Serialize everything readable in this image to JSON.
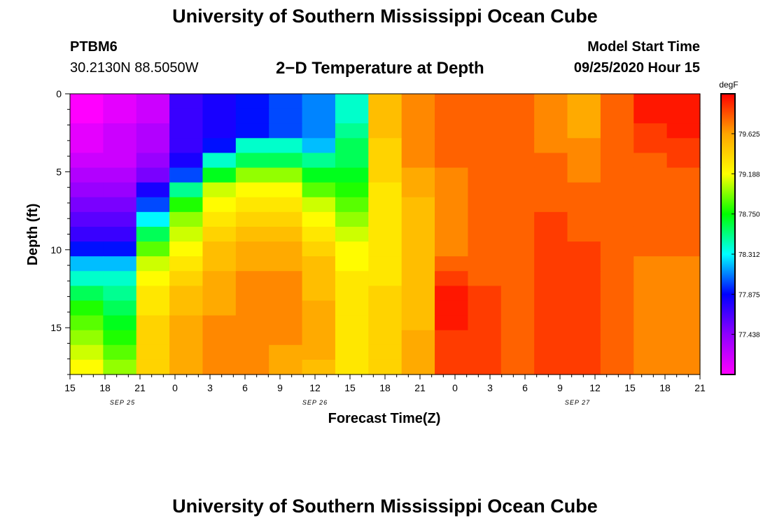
{
  "header": {
    "title": "University of Southern Mississippi Ocean Cube",
    "station_id": "PTBM6",
    "station_location": "30.2130N 88.5050W",
    "plot_title": "2−D Temperature at Depth",
    "model_start_label": "Model Start Time",
    "model_start_value": "09/25/2020 Hour 15"
  },
  "footer": {
    "title": "University of Southern Mississippi Ocean Cube"
  },
  "chart_data": {
    "type": "heatmap",
    "title": "2−D Temperature at Depth",
    "xlabel": "Forecast Time(Z)",
    "ylabel": "Depth (ft)",
    "x_ticks": [
      "15",
      "18",
      "21",
      "0",
      "3",
      "6",
      "9",
      "12",
      "15",
      "18",
      "21",
      "0",
      "3",
      "6",
      "9",
      "12",
      "15",
      "18",
      "21"
    ],
    "x_hours": [
      0,
      3,
      6,
      9,
      12,
      15,
      18,
      21,
      24,
      27,
      30,
      33,
      36,
      39,
      42,
      45,
      48,
      51,
      54
    ],
    "date_labels": [
      {
        "label": "SEP 25",
        "hour": 4.5
      },
      {
        "label": "SEP 26",
        "hour": 21
      },
      {
        "label": "SEP 27",
        "hour": 43.5
      }
    ],
    "y_ticks": [
      0,
      5,
      10,
      15
    ],
    "ylim": [
      18,
      0
    ],
    "xlim": [
      0,
      54
    ],
    "colorbar": {
      "unit": "degF",
      "min": 77.0,
      "max": 80.06,
      "tick_labels": [
        "77.438",
        "77.875",
        "78.312",
        "78.750",
        "79.188",
        "79.625"
      ],
      "tick_values": [
        77.438,
        77.875,
        78.312,
        78.75,
        79.188,
        79.625
      ],
      "colors": [
        "#ff00ff",
        "#8f00ff",
        "#0000ff",
        "#00ffff",
        "#00ff00",
        "#ffff00",
        "#ffa500",
        "#ff0000"
      ]
    },
    "time_steps_hours": [
      0,
      3,
      6,
      9,
      12,
      15,
      18,
      21,
      24,
      27,
      30,
      33,
      36,
      39,
      42,
      45,
      48,
      51,
      54
    ],
    "depth_levels_ft": [
      0,
      1,
      2,
      3,
      4,
      5,
      6,
      7,
      8,
      9,
      10,
      11,
      12,
      13,
      14,
      15,
      16,
      17,
      18
    ],
    "values": [
      [
        77.0,
        77.1,
        77.2,
        77.7,
        77.8,
        77.9,
        78.0,
        78.1,
        78.4,
        79.5,
        79.7,
        79.8,
        79.8,
        79.8,
        79.7,
        79.6,
        79.8,
        80.0,
        80.0
      ],
      [
        77.0,
        77.1,
        77.2,
        77.7,
        77.8,
        77.9,
        78.0,
        78.1,
        78.4,
        79.5,
        79.7,
        79.8,
        79.8,
        79.8,
        79.7,
        79.6,
        79.8,
        80.0,
        80.0
      ],
      [
        77.1,
        77.2,
        77.3,
        77.7,
        77.8,
        77.9,
        78.0,
        78.1,
        78.5,
        79.5,
        79.7,
        79.8,
        79.8,
        79.8,
        79.7,
        79.6,
        79.8,
        79.9,
        80.0
      ],
      [
        77.1,
        77.2,
        77.3,
        77.7,
        77.9,
        78.4,
        78.4,
        78.2,
        78.6,
        79.4,
        79.7,
        79.8,
        79.8,
        79.8,
        79.7,
        79.7,
        79.8,
        79.9,
        79.9
      ],
      [
        77.2,
        77.2,
        77.4,
        77.8,
        78.4,
        78.6,
        78.6,
        78.5,
        78.6,
        79.4,
        79.7,
        79.8,
        79.8,
        79.8,
        79.8,
        79.7,
        79.8,
        79.8,
        79.9
      ],
      [
        77.3,
        77.3,
        77.5,
        78.0,
        78.7,
        79.0,
        79.0,
        78.7,
        78.7,
        79.4,
        79.6,
        79.7,
        79.8,
        79.8,
        79.8,
        79.7,
        79.8,
        79.8,
        79.8
      ],
      [
        77.4,
        77.4,
        77.8,
        78.5,
        79.1,
        79.2,
        79.2,
        78.9,
        78.8,
        79.3,
        79.6,
        79.7,
        79.8,
        79.8,
        79.8,
        79.8,
        79.8,
        79.8,
        79.8
      ],
      [
        77.5,
        77.5,
        78.0,
        78.8,
        79.2,
        79.3,
        79.3,
        79.1,
        78.9,
        79.3,
        79.5,
        79.7,
        79.8,
        79.8,
        79.8,
        79.8,
        79.8,
        79.8,
        79.8
      ],
      [
        77.6,
        77.6,
        78.3,
        79.0,
        79.3,
        79.4,
        79.4,
        79.2,
        79.0,
        79.3,
        79.5,
        79.7,
        79.8,
        79.8,
        79.9,
        79.8,
        79.8,
        79.8,
        79.8
      ],
      [
        77.7,
        77.7,
        78.6,
        79.1,
        79.4,
        79.5,
        79.5,
        79.3,
        79.1,
        79.3,
        79.5,
        79.7,
        79.8,
        79.8,
        79.9,
        79.8,
        79.8,
        79.8,
        79.8
      ],
      [
        77.9,
        77.9,
        78.9,
        79.2,
        79.5,
        79.6,
        79.6,
        79.4,
        79.2,
        79.3,
        79.5,
        79.7,
        79.8,
        79.8,
        79.9,
        79.9,
        79.8,
        79.8,
        79.8
      ],
      [
        78.2,
        78.2,
        79.1,
        79.3,
        79.5,
        79.6,
        79.6,
        79.5,
        79.2,
        79.3,
        79.5,
        79.8,
        79.8,
        79.8,
        79.9,
        79.9,
        79.8,
        79.7,
        79.7
      ],
      [
        78.4,
        78.4,
        79.2,
        79.4,
        79.6,
        79.7,
        79.7,
        79.5,
        79.3,
        79.3,
        79.5,
        79.9,
        79.8,
        79.8,
        79.9,
        79.9,
        79.8,
        79.7,
        79.7
      ],
      [
        78.6,
        78.5,
        79.3,
        79.5,
        79.6,
        79.7,
        79.7,
        79.5,
        79.3,
        79.4,
        79.5,
        80.0,
        79.9,
        79.8,
        79.9,
        79.9,
        79.8,
        79.7,
        79.7
      ],
      [
        78.8,
        78.6,
        79.3,
        79.5,
        79.6,
        79.7,
        79.7,
        79.6,
        79.3,
        79.4,
        79.5,
        80.0,
        79.9,
        79.8,
        79.9,
        79.9,
        79.8,
        79.7,
        79.7
      ],
      [
        78.9,
        78.7,
        79.4,
        79.6,
        79.7,
        79.7,
        79.7,
        79.6,
        79.3,
        79.4,
        79.5,
        80.0,
        79.9,
        79.8,
        79.9,
        79.9,
        79.8,
        79.7,
        79.7
      ],
      [
        79.0,
        78.8,
        79.4,
        79.6,
        79.7,
        79.7,
        79.7,
        79.6,
        79.3,
        79.4,
        79.6,
        79.9,
        79.9,
        79.8,
        79.9,
        79.9,
        79.8,
        79.7,
        79.7
      ],
      [
        79.1,
        78.9,
        79.4,
        79.6,
        79.7,
        79.7,
        79.6,
        79.6,
        79.3,
        79.4,
        79.6,
        79.9,
        79.9,
        79.8,
        79.9,
        79.9,
        79.8,
        79.7,
        79.7
      ],
      [
        79.2,
        79.0,
        79.4,
        79.6,
        79.7,
        79.7,
        79.6,
        79.5,
        79.3,
        79.4,
        79.6,
        79.9,
        79.9,
        79.8,
        79.9,
        79.9,
        79.8,
        79.7,
        79.7
      ]
    ]
  }
}
